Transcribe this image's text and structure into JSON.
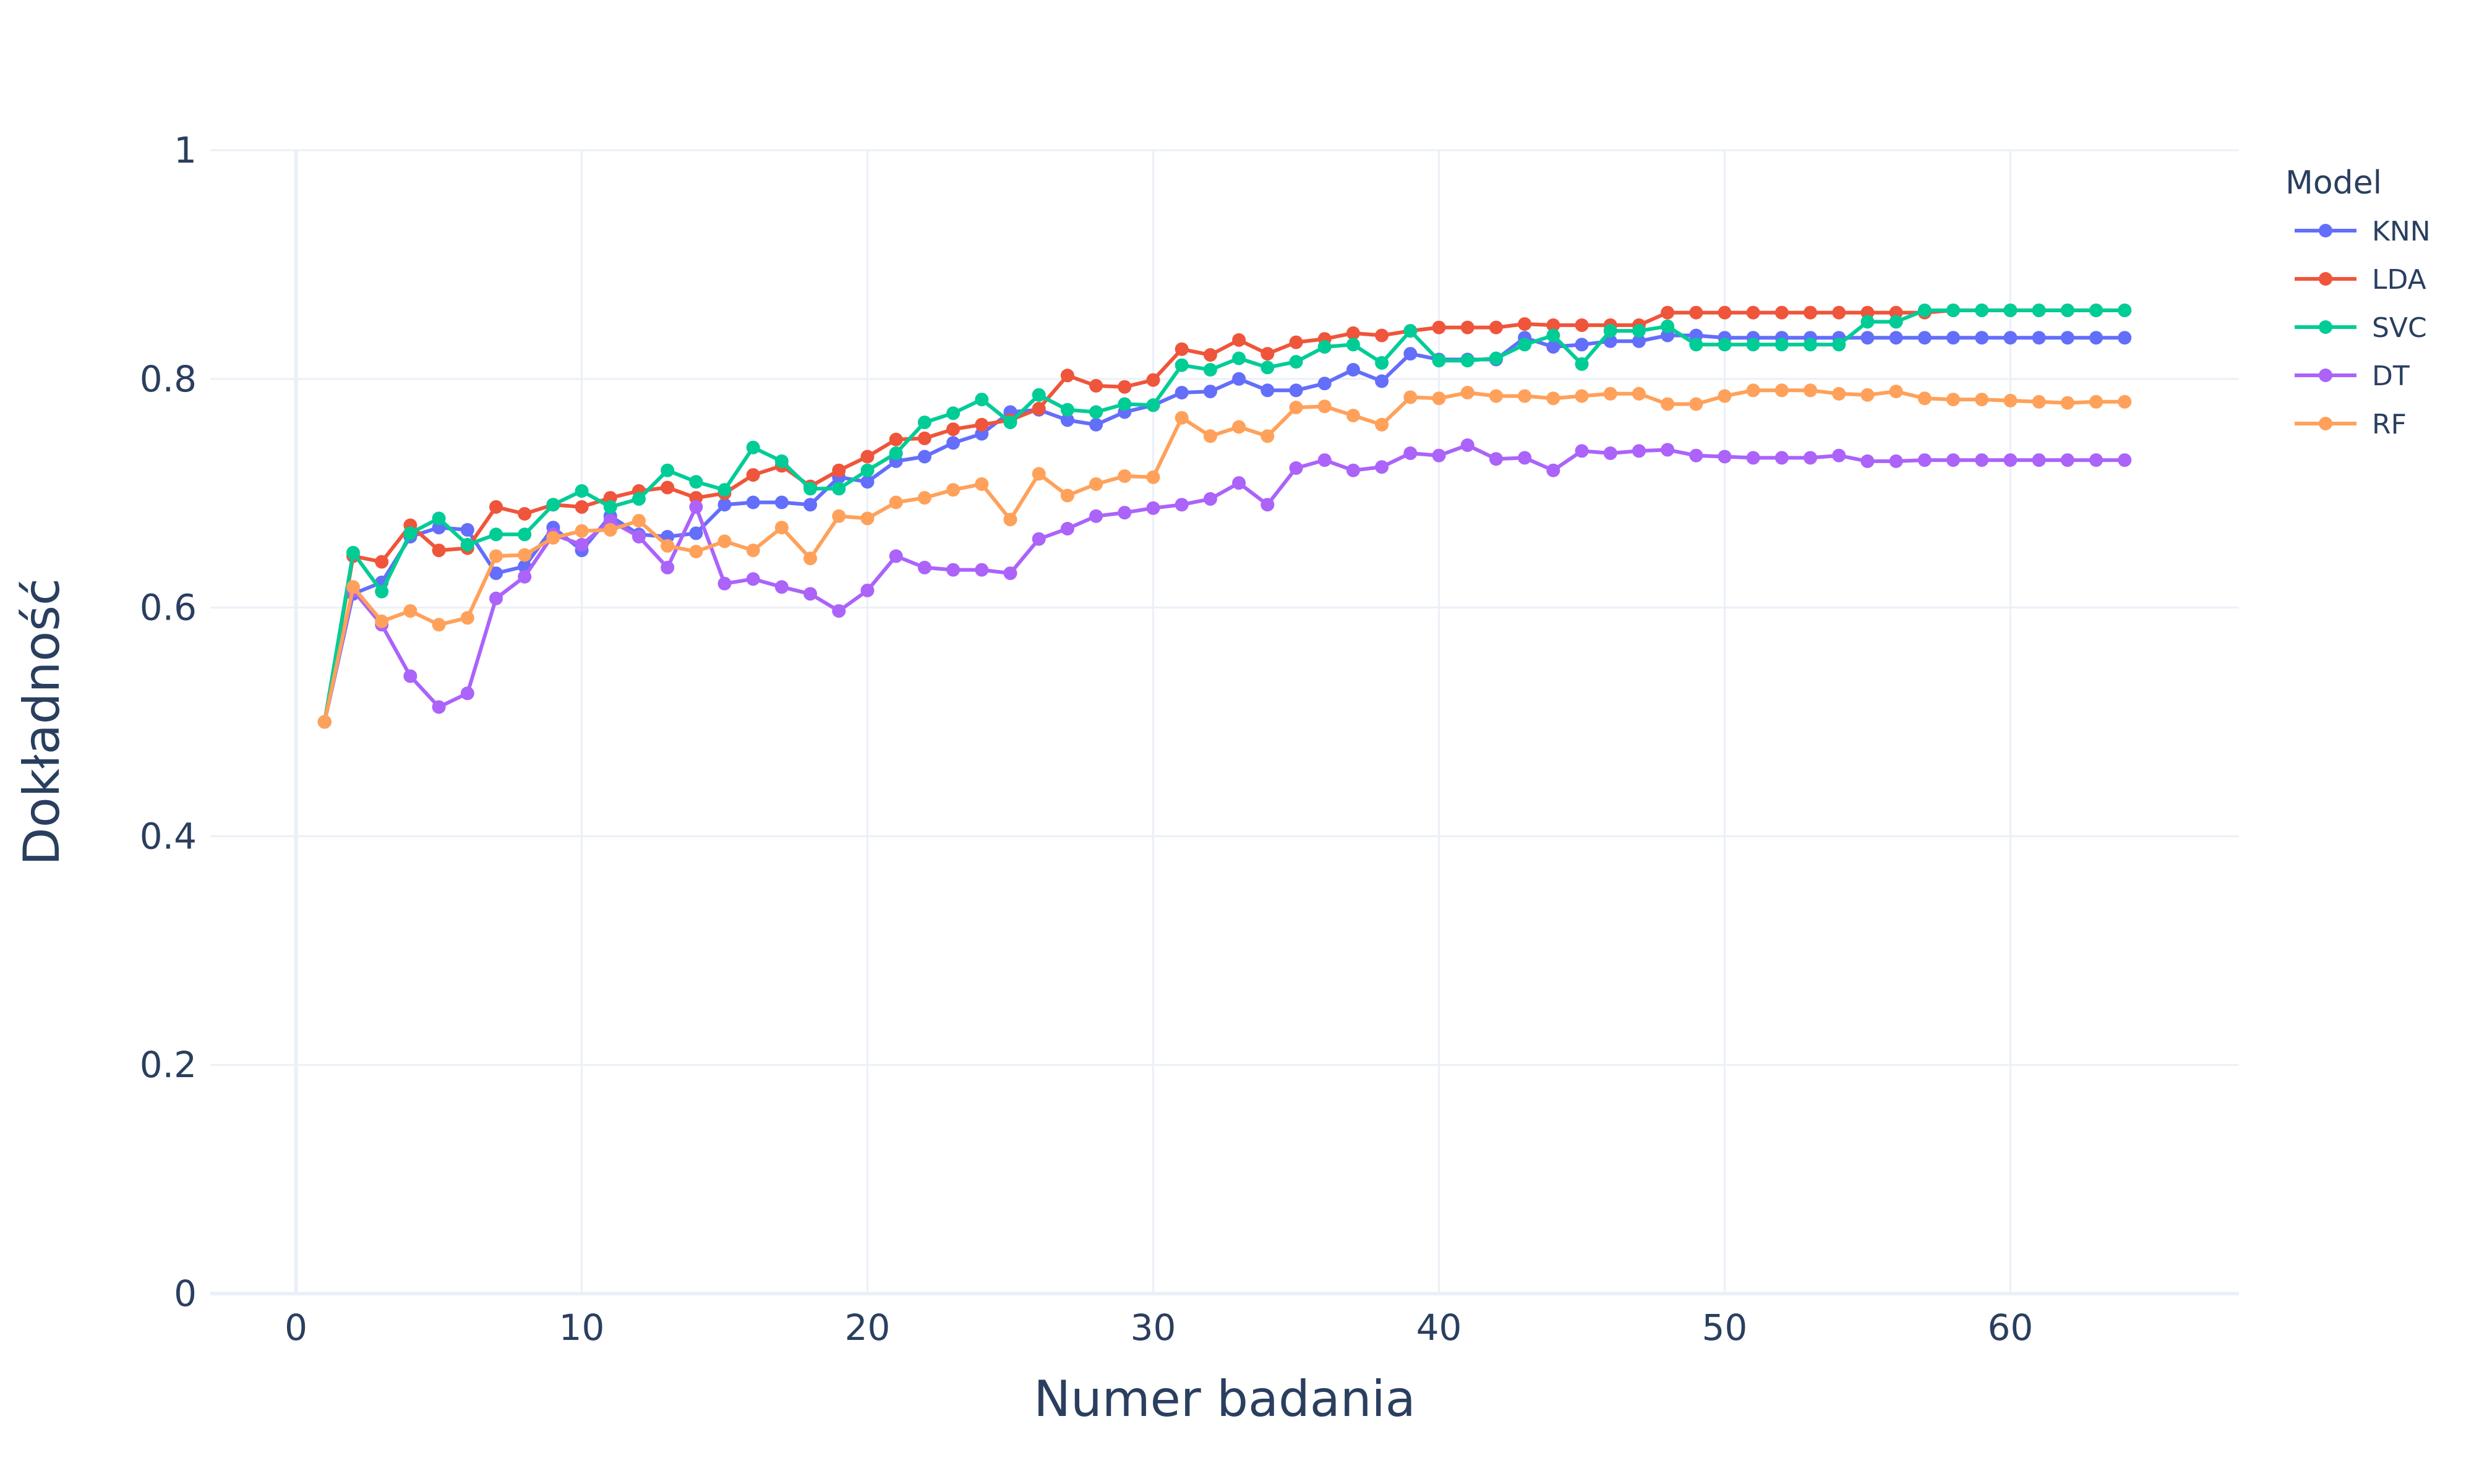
{
  "chart_data": {
    "type": "line",
    "xlabel": "Numer badania",
    "ylabel": "Dokładność",
    "xlim": [
      -3,
      68
    ],
    "ylim": [
      0,
      1
    ],
    "x_ticks": [
      0,
      10,
      20,
      30,
      40,
      50,
      60
    ],
    "y_ticks": [
      0,
      0.2,
      0.4,
      0.6,
      0.8,
      1
    ],
    "y_tick_labels": [
      "0",
      "0.2",
      "0.4",
      "0.6",
      "0.8",
      "1"
    ],
    "grid": true,
    "legend": {
      "title": "Model",
      "position": "top-right"
    },
    "x": [
      1,
      2,
      3,
      4,
      5,
      6,
      7,
      8,
      9,
      10,
      11,
      12,
      13,
      14,
      15,
      16,
      17,
      18,
      19,
      20,
      21,
      22,
      23,
      24,
      25,
      26,
      27,
      28,
      29,
      30,
      31,
      32,
      33,
      34,
      35,
      36,
      37,
      38,
      39,
      40,
      41,
      42,
      43,
      44,
      45,
      46,
      47,
      48,
      49,
      50,
      51,
      52,
      53,
      54,
      55,
      56,
      57,
      58,
      59,
      60,
      61,
      62,
      63,
      64
    ],
    "series": [
      {
        "name": "KNN",
        "color": "#636efa",
        "values": [
          0.5,
          0.612,
          0.622,
          0.662,
          0.67,
          0.668,
          0.63,
          0.636,
          0.67,
          0.65,
          0.68,
          0.664,
          0.662,
          0.665,
          0.69,
          0.692,
          0.692,
          0.69,
          0.714,
          0.71,
          0.728,
          0.732,
          0.744,
          0.752,
          0.771,
          0.773,
          0.764,
          0.76,
          0.771,
          0.777,
          0.788,
          0.789,
          0.8,
          0.79,
          0.79,
          0.796,
          0.808,
          0.798,
          0.822,
          0.817,
          0.817,
          0.817,
          0.836,
          0.828,
          0.83,
          0.833,
          0.833,
          0.838,
          0.838,
          0.836,
          0.836,
          0.836,
          0.836,
          0.836,
          0.836,
          0.836,
          0.836,
          0.836,
          0.836,
          0.836,
          0.836,
          0.836,
          0.836,
          0.836
        ]
      },
      {
        "name": "LDA",
        "color": "#ef553b",
        "values": [
          0.5,
          0.645,
          0.64,
          0.672,
          0.65,
          0.652,
          0.688,
          0.682,
          0.69,
          0.688,
          0.696,
          0.702,
          0.705,
          0.696,
          0.7,
          0.716,
          0.724,
          0.706,
          0.72,
          0.732,
          0.747,
          0.748,
          0.756,
          0.76,
          0.764,
          0.774,
          0.803,
          0.794,
          0.793,
          0.799,
          0.826,
          0.821,
          0.834,
          0.822,
          0.832,
          0.835,
          0.84,
          0.838,
          0.842,
          0.845,
          0.845,
          0.845,
          0.848,
          0.847,
          0.847,
          0.847,
          0.847,
          0.858,
          0.858,
          0.858,
          0.858,
          0.858,
          0.858,
          0.858,
          0.858,
          0.858,
          0.858,
          0.86,
          0.86,
          0.86,
          0.86,
          0.86,
          0.86,
          0.86
        ]
      },
      {
        "name": "SVC",
        "color": "#00cc96",
        "values": [
          0.5,
          0.648,
          0.614,
          0.665,
          0.678,
          0.655,
          0.664,
          0.664,
          0.69,
          0.702,
          0.688,
          0.695,
          0.72,
          0.71,
          0.703,
          0.74,
          0.728,
          0.704,
          0.704,
          0.72,
          0.735,
          0.762,
          0.77,
          0.782,
          0.762,
          0.786,
          0.773,
          0.771,
          0.778,
          0.777,
          0.812,
          0.808,
          0.818,
          0.81,
          0.815,
          0.828,
          0.83,
          0.814,
          0.842,
          0.816,
          0.816,
          0.818,
          0.83,
          0.838,
          0.813,
          0.842,
          0.842,
          0.846,
          0.83,
          0.83,
          0.83,
          0.83,
          0.83,
          0.83,
          0.85,
          0.85,
          0.86,
          0.86,
          0.86,
          0.86,
          0.86,
          0.86,
          0.86,
          0.86
        ]
      },
      {
        "name": "DT",
        "color": "#ab63fa",
        "values": [
          0.5,
          0.615,
          0.585,
          0.54,
          0.513,
          0.525,
          0.608,
          0.627,
          0.664,
          0.655,
          0.676,
          0.662,
          0.635,
          0.688,
          0.621,
          0.625,
          0.618,
          0.612,
          0.597,
          0.615,
          0.645,
          0.635,
          0.633,
          0.633,
          0.63,
          0.66,
          0.669,
          0.68,
          0.683,
          0.687,
          0.69,
          0.695,
          0.709,
          0.69,
          0.722,
          0.729,
          0.72,
          0.723,
          0.735,
          0.733,
          0.742,
          0.73,
          0.731,
          0.72,
          0.737,
          0.735,
          0.737,
          0.738,
          0.733,
          0.732,
          0.731,
          0.731,
          0.731,
          0.733,
          0.728,
          0.728,
          0.729,
          0.729,
          0.729,
          0.729,
          0.729,
          0.729,
          0.729,
          0.729
        ]
      },
      {
        "name": "RF",
        "color": "#ffa15a",
        "values": [
          0.5,
          0.618,
          0.588,
          0.597,
          0.585,
          0.591,
          0.645,
          0.646,
          0.661,
          0.667,
          0.668,
          0.676,
          0.654,
          0.649,
          0.658,
          0.65,
          0.67,
          0.643,
          0.68,
          0.678,
          0.692,
          0.696,
          0.703,
          0.708,
          0.677,
          0.717,
          0.698,
          0.708,
          0.715,
          0.714,
          0.766,
          0.75,
          0.758,
          0.75,
          0.775,
          0.776,
          0.768,
          0.76,
          0.784,
          0.783,
          0.788,
          0.785,
          0.785,
          0.783,
          0.785,
          0.787,
          0.787,
          0.778,
          0.778,
          0.785,
          0.79,
          0.79,
          0.79,
          0.787,
          0.786,
          0.789,
          0.783,
          0.782,
          0.782,
          0.781,
          0.78,
          0.779,
          0.78,
          0.78
        ]
      }
    ]
  }
}
